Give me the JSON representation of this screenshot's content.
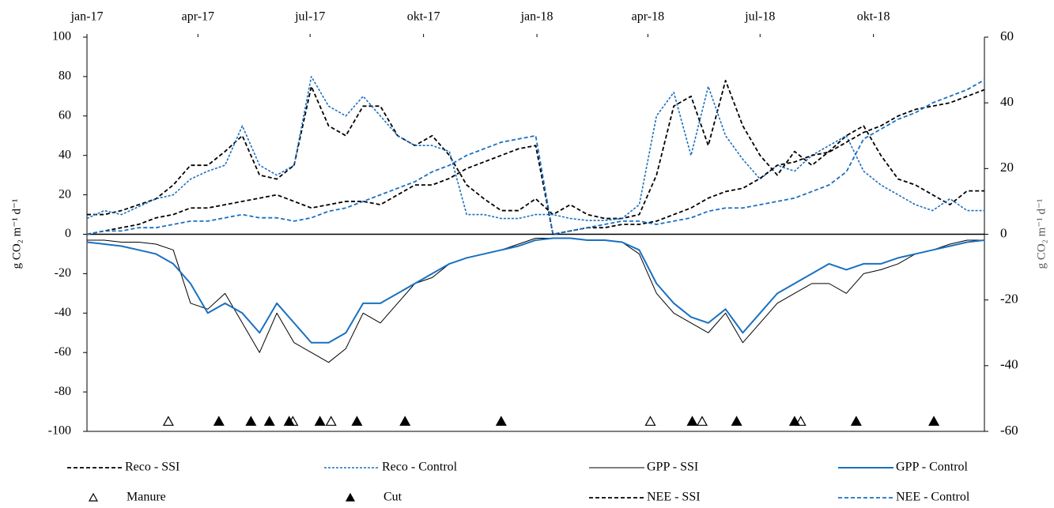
{
  "chart_data": {
    "type": "line",
    "y_label": "g CO₂ m⁻¹ d⁻¹",
    "y2_label": "g CO₂ m⁻¹ d⁻¹",
    "xlim": [
      0,
      728
    ],
    "xticks": [
      {
        "value": 0,
        "label": "jan-17"
      },
      {
        "value": 90,
        "label": "apr-17"
      },
      {
        "value": 181,
        "label": "jul-17"
      },
      {
        "value": 273,
        "label": "okt-17"
      },
      {
        "value": 365,
        "label": "jan-18"
      },
      {
        "value": 455,
        "label": "apr-18"
      },
      {
        "value": 546,
        "label": "jul-18"
      },
      {
        "value": 638,
        "label": "okt-18"
      }
    ],
    "ylim": [
      -100,
      100
    ],
    "yticks": [
      -100,
      -80,
      -60,
      -40,
      -20,
      0,
      20,
      40,
      60,
      80,
      100
    ],
    "y2lim": [
      -60,
      60
    ],
    "y2ticks": [
      -60,
      -40,
      -20,
      0,
      20,
      40,
      60
    ],
    "x": [
      0,
      14,
      28,
      42,
      56,
      70,
      84,
      98,
      112,
      126,
      140,
      154,
      168,
      182,
      196,
      210,
      224,
      238,
      252,
      266,
      280,
      294,
      308,
      322,
      336,
      350,
      364,
      378,
      392,
      406,
      420,
      434,
      448,
      462,
      476,
      490,
      504,
      518,
      532,
      546,
      560,
      574,
      588,
      602,
      616,
      630,
      644,
      658,
      672,
      686,
      700,
      714,
      728
    ],
    "series": [
      {
        "name": "Reco - SSI",
        "color": "#000000",
        "style": "dashed",
        "values": [
          10,
          10,
          12,
          15,
          18,
          25,
          35,
          35,
          42,
          50,
          30,
          28,
          35,
          75,
          55,
          50,
          65,
          65,
          50,
          45,
          50,
          40,
          25,
          18,
          12,
          12,
          18,
          10,
          15,
          10,
          8,
          8,
          10,
          30,
          65,
          70,
          45,
          78,
          55,
          40,
          30,
          42,
          35,
          42,
          50,
          55,
          40,
          28,
          25,
          20,
          15,
          22,
          22
        ]
      },
      {
        "name": "Reco - Control",
        "color": "#1a70c0",
        "style": "dotted",
        "values": [
          8,
          12,
          10,
          14,
          18,
          20,
          28,
          32,
          35,
          55,
          35,
          30,
          35,
          80,
          65,
          60,
          70,
          60,
          50,
          45,
          45,
          42,
          10,
          10,
          8,
          8,
          10,
          10,
          8,
          7,
          7,
          8,
          15,
          60,
          72,
          40,
          75,
          50,
          38,
          28,
          35,
          32,
          40,
          45,
          50,
          32,
          25,
          20,
          15,
          12,
          18,
          12,
          12
        ]
      },
      {
        "name": "GPP - SSI",
        "color": "#000000",
        "style": "solid-thin",
        "values": [
          -3,
          -3,
          -4,
          -4,
          -5,
          -8,
          -35,
          -38,
          -30,
          -45,
          -60,
          -40,
          -55,
          -60,
          -65,
          -58,
          -40,
          -45,
          -35,
          -25,
          -22,
          -15,
          -12,
          -10,
          -8,
          -5,
          -2,
          -2,
          -2,
          -3,
          -3,
          -4,
          -10,
          -30,
          -40,
          -45,
          -50,
          -40,
          -55,
          -45,
          -35,
          -30,
          -25,
          -25,
          -30,
          -20,
          -18,
          -15,
          -10,
          -8,
          -5,
          -3,
          -3
        ]
      },
      {
        "name": "GPP - Control",
        "color": "#1a70c0",
        "style": "solid",
        "values": [
          -4,
          -5,
          -6,
          -8,
          -10,
          -15,
          -25,
          -40,
          -35,
          -40,
          -50,
          -35,
          -45,
          -55,
          -55,
          -50,
          -35,
          -35,
          -30,
          -25,
          -20,
          -15,
          -12,
          -10,
          -8,
          -6,
          -3,
          -2,
          -2,
          -3,
          -3,
          -4,
          -8,
          -25,
          -35,
          -42,
          -45,
          -38,
          -50,
          -40,
          -30,
          -25,
          -20,
          -15,
          -18,
          -15,
          -15,
          -12,
          -10,
          -8,
          -6,
          -4,
          -3
        ]
      },
      {
        "name": "Manure",
        "color": "#000000",
        "marker": "triangle-open",
        "x": [
          66,
          167,
          198,
          457,
          499,
          579
        ],
        "values": [
          -95,
          -95,
          -95,
          -95,
          -95,
          -95
        ]
      },
      {
        "name": "Cut",
        "color": "#000000",
        "marker": "triangle",
        "x": [
          107,
          133,
          148,
          164,
          189,
          219,
          258,
          336,
          491,
          527,
          574,
          624,
          687
        ],
        "values": [
          -95,
          -95,
          -95,
          -95,
          -95,
          -95,
          -95,
          -95,
          -95,
          -95,
          -95,
          -95,
          -95
        ]
      },
      {
        "name": "NEE - SSI",
        "color": "#000000",
        "style": "dashed",
        "axis": "y2",
        "values": [
          0,
          1,
          2,
          3,
          5,
          6,
          8,
          8,
          9,
          10,
          11,
          12,
          10,
          8,
          9,
          10,
          10,
          9,
          12,
          15,
          15,
          17,
          20,
          22,
          24,
          26,
          27,
          0,
          1,
          2,
          2,
          3,
          3,
          4,
          6,
          8,
          11,
          13,
          14,
          17,
          21,
          22,
          24,
          25,
          28,
          31,
          33,
          36,
          38,
          39,
          40,
          42,
          44
        ]
      },
      {
        "name": "NEE - Control",
        "color": "#1a70c0",
        "style": "dashed",
        "axis": "y2",
        "values": [
          0,
          1,
          1,
          2,
          2,
          3,
          4,
          4,
          5,
          6,
          5,
          5,
          4,
          5,
          7,
          8,
          10,
          12,
          14,
          16,
          19,
          21,
          24,
          26,
          28,
          29,
          30,
          0,
          1,
          2,
          3,
          4,
          4,
          3,
          4,
          5,
          7,
          8,
          8,
          9,
          10,
          11,
          13,
          15,
          19,
          29,
          32,
          35,
          37,
          40,
          42,
          44,
          47
        ]
      }
    ]
  }
}
